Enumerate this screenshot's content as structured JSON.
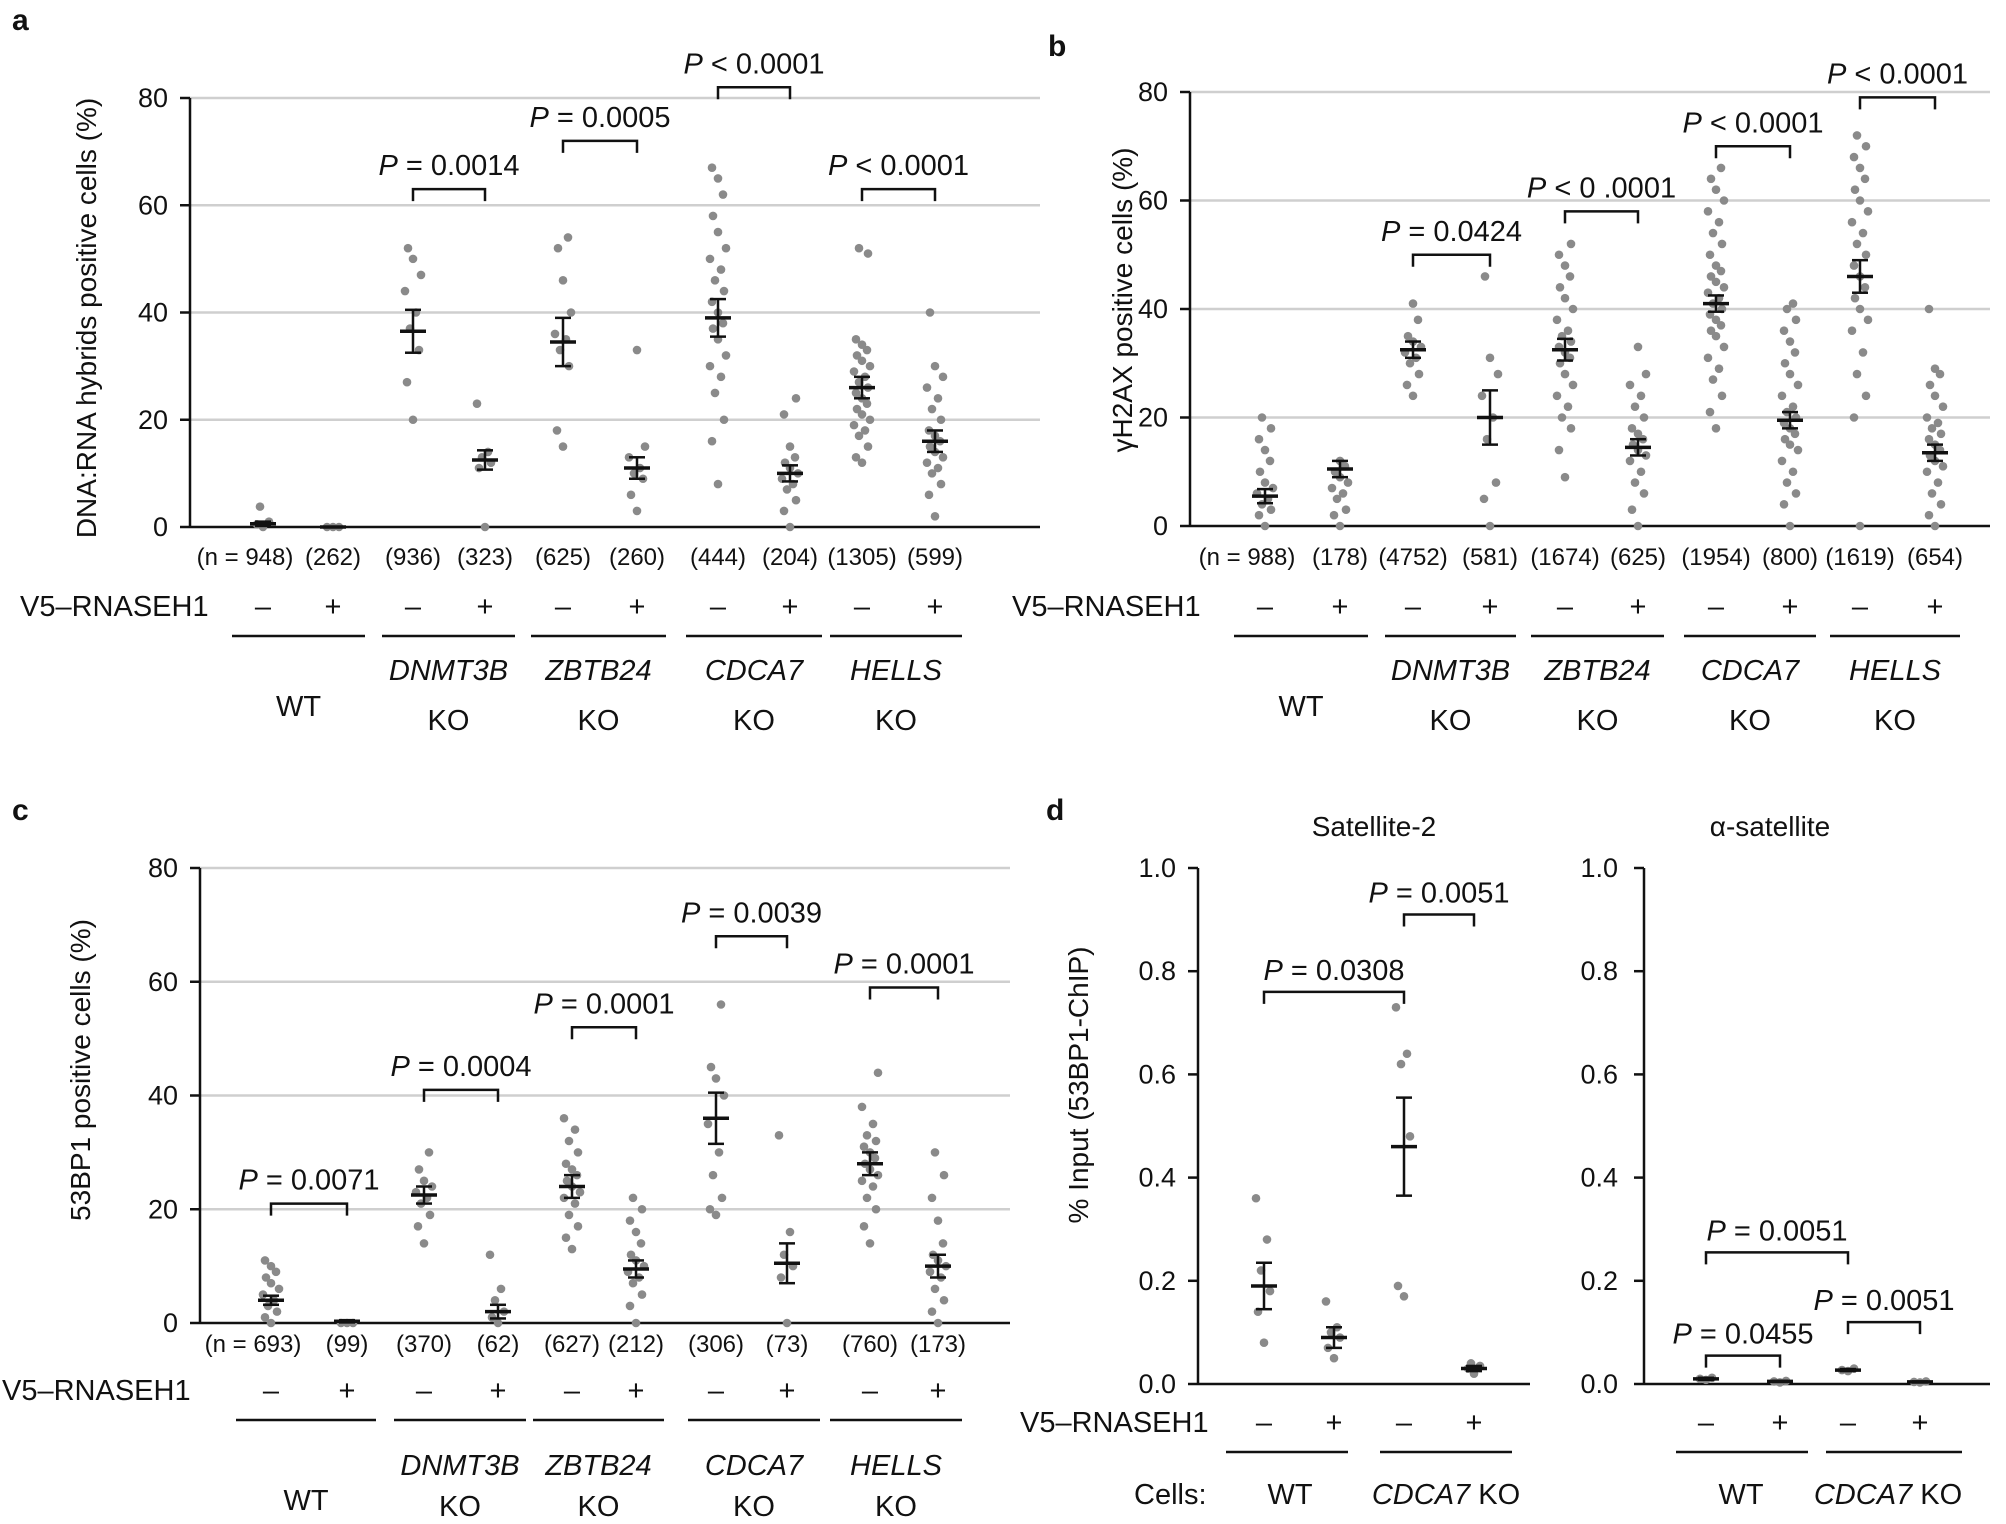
{
  "figure": {
    "treatment_label": "V5–RNASEH1",
    "minus": "–",
    "plus": "+",
    "cells_label": "Cells:",
    "p_letter": "P"
  },
  "chart_data": [
    {
      "panel": "a",
      "type": "scatter",
      "ylabel": "DNA:RNA hybrids positive cells (%)",
      "ylim": [
        0,
        80
      ],
      "yticks": [
        0,
        20,
        40,
        60,
        80
      ],
      "grid": true,
      "n_labels": [
        "(n = 948)",
        "(262)",
        "(936)",
        "(323)",
        "(625)",
        "(260)",
        "(444)",
        "(204)",
        "(1305)",
        "(599)"
      ],
      "rnaseh1": [
        "–",
        "+",
        "–",
        "+",
        "–",
        "+",
        "–",
        "+",
        "–",
        "+"
      ],
      "groups": [
        {
          "name": "WT",
          "suffix": ""
        },
        {
          "name": "DNMT3B",
          "suffix": "KO"
        },
        {
          "name": "ZBTB24",
          "suffix": "KO"
        },
        {
          "name": "CDCA7",
          "suffix": "KO"
        },
        {
          "name": "HELLS",
          "suffix": "KO"
        }
      ],
      "conditions": [
        {
          "mean": 0.6,
          "sem": 0.4,
          "points": [
            0,
            0.5,
            1,
            3.8
          ]
        },
        {
          "mean": 0,
          "sem": 0,
          "points": [
            0,
            0,
            0
          ]
        },
        {
          "mean": 36.5,
          "sem": 4.0,
          "points": [
            20,
            27,
            33,
            37,
            40,
            44,
            47,
            50,
            52
          ]
        },
        {
          "mean": 12.5,
          "sem": 1.8,
          "points": [
            0,
            11,
            12,
            13,
            14,
            23
          ]
        },
        {
          "mean": 34.5,
          "sem": 4.5,
          "points": [
            15,
            18,
            30,
            33,
            35,
            36,
            40,
            46,
            52,
            54
          ]
        },
        {
          "mean": 11,
          "sem": 2.0,
          "points": [
            3,
            6,
            9,
            10,
            11,
            13,
            15,
            33
          ]
        },
        {
          "mean": 39,
          "sem": 3.5,
          "points": [
            8,
            16,
            20,
            25,
            28,
            30,
            32,
            35,
            37,
            38,
            40,
            42,
            44,
            46,
            48,
            50,
            52,
            55,
            58,
            62,
            65,
            67
          ]
        },
        {
          "mean": 10,
          "sem": 1.5,
          "points": [
            0,
            3,
            5,
            7,
            8,
            9,
            10,
            11,
            12,
            13,
            15,
            21,
            24
          ]
        },
        {
          "mean": 26,
          "sem": 2.0,
          "points": [
            12,
            13,
            15,
            17,
            18,
            19,
            20,
            21,
            22,
            23,
            24,
            25,
            26,
            27,
            28,
            29,
            30,
            31,
            32,
            33,
            34,
            35,
            51,
            52
          ]
        },
        {
          "mean": 16,
          "sem": 2.0,
          "points": [
            2,
            6,
            8,
            10,
            11,
            12,
            13,
            14,
            15,
            16,
            17,
            18,
            20,
            22,
            24,
            26,
            28,
            30,
            40
          ]
        }
      ],
      "comparisons": [
        {
          "a": 2,
          "b": 3,
          "y": 63,
          "label": " = 0.0014"
        },
        {
          "a": 4,
          "b": 5,
          "y": 72,
          "label": " = 0.0005"
        },
        {
          "a": 6,
          "b": 7,
          "y": 82,
          "label": " < 0.0001"
        },
        {
          "a": 8,
          "b": 9,
          "y": 63,
          "label": " < 0.0001"
        }
      ]
    },
    {
      "panel": "b",
      "type": "scatter",
      "ylabel": "γH2AX positive cells (%)",
      "ylim": [
        0,
        80
      ],
      "yticks": [
        0,
        20,
        40,
        60,
        80
      ],
      "grid": true,
      "n_labels": [
        "(n = 988)",
        "(178)",
        "(4752)",
        "(581)",
        "(1674)",
        "(625)",
        "(1954)",
        "(800)",
        "(1619)",
        "(654)"
      ],
      "rnaseh1": [
        "–",
        "+",
        "–",
        "+",
        "–",
        "+",
        "–",
        "+",
        "–",
        "+"
      ],
      "groups": [
        {
          "name": "WT",
          "suffix": ""
        },
        {
          "name": "DNMT3B",
          "suffix": "KO"
        },
        {
          "name": "ZBTB24",
          "suffix": "KO"
        },
        {
          "name": "CDCA7",
          "suffix": "KO"
        },
        {
          "name": "HELLS",
          "suffix": "KO"
        }
      ],
      "conditions": [
        {
          "mean": 5.5,
          "sem": 1.3,
          "points": [
            0,
            2,
            3,
            4,
            5,
            6,
            7,
            8,
            10,
            12,
            14,
            16,
            18,
            20
          ]
        },
        {
          "mean": 10.5,
          "sem": 1.5,
          "points": [
            0,
            2,
            3,
            5,
            6,
            7,
            8,
            9,
            10,
            11,
            12
          ]
        },
        {
          "mean": 32.5,
          "sem": 1.5,
          "points": [
            24,
            26,
            28,
            30,
            31,
            32,
            33,
            34,
            35,
            38,
            41
          ]
        },
        {
          "mean": 20,
          "sem": 5.0,
          "points": [
            0,
            5,
            8,
            16,
            20,
            24,
            28,
            31,
            46
          ]
        },
        {
          "mean": 32.5,
          "sem": 2.0,
          "points": [
            9,
            14,
            18,
            20,
            22,
            24,
            26,
            28,
            30,
            31,
            32,
            33,
            34,
            35,
            36,
            38,
            40,
            42,
            44,
            46,
            48,
            50,
            52
          ]
        },
        {
          "mean": 14.5,
          "sem": 1.5,
          "points": [
            0,
            3,
            6,
            8,
            10,
            12,
            13,
            14,
            15,
            16,
            17,
            18,
            20,
            22,
            24,
            26,
            28,
            33
          ]
        },
        {
          "mean": 41,
          "sem": 1.5,
          "points": [
            18,
            21,
            24,
            27,
            29,
            31,
            33,
            35,
            36,
            37,
            38,
            39,
            40,
            41,
            42,
            43,
            44,
            45,
            46,
            47,
            48,
            50,
            52,
            54,
            56,
            58,
            60,
            62,
            64,
            66
          ]
        },
        {
          "mean": 19.5,
          "sem": 1.5,
          "points": [
            0,
            4,
            6,
            8,
            10,
            12,
            14,
            15,
            16,
            17,
            18,
            19,
            20,
            21,
            22,
            24,
            26,
            28,
            30,
            32,
            34,
            36,
            38,
            40,
            41
          ]
        },
        {
          "mean": 46,
          "sem": 3.0,
          "points": [
            0,
            20,
            24,
            28,
            32,
            36,
            38,
            40,
            42,
            44,
            46,
            48,
            50,
            52,
            54,
            56,
            58,
            60,
            62,
            64,
            66,
            68,
            70,
            72
          ]
        },
        {
          "mean": 13.5,
          "sem": 1.5,
          "points": [
            0,
            2,
            4,
            6,
            8,
            10,
            11,
            12,
            13,
            14,
            15,
            16,
            17,
            18,
            19,
            20,
            22,
            24,
            26,
            28,
            29,
            40
          ]
        }
      ],
      "comparisons": [
        {
          "a": 2,
          "b": 3,
          "y": 50,
          "label": " = 0.0424"
        },
        {
          "a": 4,
          "b": 5,
          "y": 58,
          "label": " < 0 .0001"
        },
        {
          "a": 6,
          "b": 7,
          "y": 70,
          "label": " < 0.0001"
        },
        {
          "a": 8,
          "b": 9,
          "y": 79,
          "label": " < 0.0001"
        }
      ]
    },
    {
      "panel": "c",
      "type": "scatter",
      "ylabel": "53BP1 positive cells (%)",
      "ylim": [
        0,
        80
      ],
      "yticks": [
        0,
        20,
        40,
        60,
        80
      ],
      "grid": true,
      "n_labels": [
        "(n = 693)",
        "(99)",
        "(370)",
        "(62)",
        "(627)",
        "(212)",
        "(306)",
        "(73)",
        "(760)",
        "(173)"
      ],
      "rnaseh1": [
        "–",
        "+",
        "–",
        "+",
        "–",
        "+",
        "–",
        "+",
        "–",
        "+"
      ],
      "groups": [
        {
          "name": "WT",
          "suffix": ""
        },
        {
          "name": "DNMT3B",
          "suffix": "KO"
        },
        {
          "name": "ZBTB24",
          "suffix": "KO"
        },
        {
          "name": "CDCA7",
          "suffix": "KO"
        },
        {
          "name": "HELLS",
          "suffix": "KO"
        }
      ],
      "conditions": [
        {
          "mean": 4,
          "sem": 0.8,
          "points": [
            0,
            1,
            2,
            3,
            4,
            5,
            6,
            7,
            8,
            9,
            10,
            11
          ]
        },
        {
          "mean": 0.3,
          "sem": 0.2,
          "points": [
            0,
            0,
            0
          ]
        },
        {
          "mean": 22.5,
          "sem": 1.5,
          "points": [
            14,
            17,
            19,
            21,
            22,
            23,
            24,
            25,
            27,
            30
          ]
        },
        {
          "mean": 2,
          "sem": 1.2,
          "points": [
            0,
            1,
            2,
            4,
            6,
            12
          ]
        },
        {
          "mean": 24,
          "sem": 2.0,
          "points": [
            13,
            15,
            17,
            19,
            21,
            22,
            23,
            24,
            25,
            26,
            27,
            28,
            30,
            32,
            34,
            36
          ]
        },
        {
          "mean": 9.5,
          "sem": 1.5,
          "points": [
            0,
            3,
            5,
            7,
            8,
            9,
            10,
            11,
            12,
            14,
            16,
            18,
            20,
            22
          ]
        },
        {
          "mean": 36,
          "sem": 4.5,
          "points": [
            19,
            20,
            22,
            26,
            30,
            35,
            40,
            43,
            45,
            56
          ]
        },
        {
          "mean": 10.5,
          "sem": 3.5,
          "points": [
            0,
            8,
            10,
            12,
            16,
            33
          ]
        },
        {
          "mean": 28,
          "sem": 2.0,
          "points": [
            14,
            17,
            20,
            22,
            24,
            25,
            26,
            27,
            28,
            29,
            30,
            31,
            32,
            33,
            35,
            38,
            44
          ]
        },
        {
          "mean": 10,
          "sem": 2.0,
          "points": [
            0,
            2,
            4,
            6,
            8,
            9,
            10,
            11,
            12,
            14,
            18,
            22,
            26,
            30
          ]
        }
      ],
      "comparisons": [
        {
          "a": 0,
          "b": 1,
          "y": 21,
          "label": " = 0.0071"
        },
        {
          "a": 2,
          "b": 3,
          "y": 41,
          "label": " = 0.0004"
        },
        {
          "a": 4,
          "b": 5,
          "y": 52,
          "label": " = 0.0001"
        },
        {
          "a": 6,
          "b": 7,
          "y": 68,
          "label": " = 0.0039"
        },
        {
          "a": 8,
          "b": 9,
          "y": 59,
          "label": " = 0.0001"
        }
      ]
    },
    {
      "panel": "d",
      "type": "scatter",
      "ylabel": "% Input (53BP1-ChIP)",
      "ylim": [
        0,
        1.0
      ],
      "yticks": [
        "0.0",
        "0.2",
        "0.4",
        "0.6",
        "0.8",
        "1.0"
      ],
      "subplots": [
        {
          "title": "Satellite-2",
          "rnaseh1": [
            "–",
            "+",
            "–",
            "+"
          ],
          "groups": [
            {
              "name": "WT",
              "suffix": ""
            },
            {
              "name": "CDCA7",
              "suffix": "KO"
            }
          ],
          "conditions": [
            {
              "mean": 0.19,
              "sem": 0.045,
              "points": [
                0.08,
                0.14,
                0.18,
                0.22,
                0.28,
                0.36
              ]
            },
            {
              "mean": 0.09,
              "sem": 0.02,
              "points": [
                0.05,
                0.07,
                0.09,
                0.1,
                0.11,
                0.16
              ]
            },
            {
              "mean": 0.46,
              "sem": 0.095,
              "points": [
                0.17,
                0.19,
                0.48,
                0.62,
                0.64,
                0.73
              ]
            },
            {
              "mean": 0.03,
              "sem": 0.005,
              "points": [
                0.02,
                0.03,
                0.035,
                0.04
              ]
            }
          ],
          "comparisons": [
            {
              "a": 0,
              "b": 2,
              "y": 0.76,
              "label": " = 0.0308"
            },
            {
              "a": 2,
              "b": 3,
              "y": 0.91,
              "label": " = 0.0051"
            }
          ]
        },
        {
          "title": "α-satellite",
          "rnaseh1": [
            "–",
            "+",
            "–",
            "+"
          ],
          "groups": [
            {
              "name": "WT",
              "suffix": ""
            },
            {
              "name": "CDCA7",
              "suffix": "KO"
            }
          ],
          "conditions": [
            {
              "mean": 0.01,
              "sem": 0.002,
              "points": [
                0.008,
                0.01,
                0.012
              ]
            },
            {
              "mean": 0.005,
              "sem": 0.001,
              "points": [
                0.003,
                0.005,
                0.006
              ]
            },
            {
              "mean": 0.027,
              "sem": 0.002,
              "points": [
                0.025,
                0.027,
                0.03
              ]
            },
            {
              "mean": 0.004,
              "sem": 0.001,
              "points": [
                0.003,
                0.004,
                0.005
              ]
            }
          ],
          "comparisons": [
            {
              "a": 0,
              "b": 1,
              "y": 0.055,
              "label": " = 0.0455"
            },
            {
              "a": 0,
              "b": 2,
              "y": 0.255,
              "label": " = 0.0051"
            },
            {
              "a": 2,
              "b": 3,
              "y": 0.12,
              "label": " = 0.0051"
            }
          ]
        }
      ],
      "cells_groups": [
        "WT",
        "CDCA7 KO"
      ]
    }
  ]
}
